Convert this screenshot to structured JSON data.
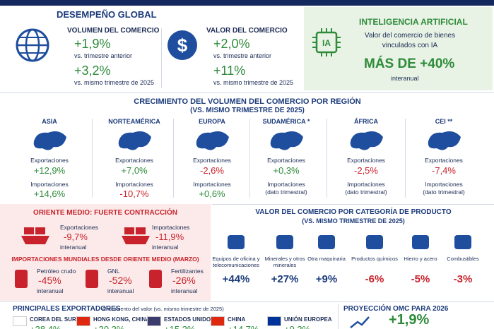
{
  "global": {
    "title": "DESEMPEÑO GLOBAL",
    "volume": {
      "title": "VOLUMEN DEL COMERCIO",
      "q_value": "+1,9%",
      "q_label": "vs. trimestre anterior",
      "y_value": "+3,2%",
      "y_label": "vs. mismo trimestre de 2025"
    },
    "value": {
      "title": "VALOR DEL COMERCIO",
      "q_value": "+2,0%",
      "q_label": "vs. trimestre anterior",
      "y_value": "+11%",
      "y_label": "vs. mismo trimestre de 2025"
    }
  },
  "ai": {
    "title": "INTELIGENCIA ARTIFICIAL",
    "icon": "IA",
    "description": "Valor del comercio de bienes vinculados con IA",
    "highlight": "MÁS DE +40%",
    "note": "interanual"
  },
  "regions": {
    "title": "CRECIMIENTO DEL VOLUMEN DEL COMERCIO POR REGIÓN",
    "subtitle": "(VS. MISMO TRIMESTRE DE 2025)",
    "export_label": "Exportaciones",
    "import_label": "Importaciones",
    "items": [
      {
        "name": "ASIA",
        "exports": "+12,9%",
        "imports": "+14,6%"
      },
      {
        "name": "NORTEAMÉRICA",
        "exports": "+7,0%",
        "imports": "-10,7%"
      },
      {
        "name": "EUROPA",
        "exports": "-2,6%",
        "imports": "+0,6%"
      },
      {
        "name": "SUDAMÉRICA *",
        "exports": "+0,3%",
        "imports_note": "(dato trimestral)"
      },
      {
        "name": "ÁFRICA",
        "exports": "-2,5%",
        "imports_note": "(dato trimestral)"
      },
      {
        "name": "CEI **",
        "exports": "-7,4%",
        "imports_note": "(dato trimestral)"
      }
    ]
  },
  "middle_east": {
    "title": "ORIENTE MEDIO: FUERTE CONTRACCIÓN",
    "flows": [
      {
        "label": "Exportaciones",
        "value": "-9,7%",
        "note": "interanual"
      },
      {
        "label": "Importaciones",
        "value": "-11,9%",
        "note": "interanual"
      }
    ],
    "sub_title": "IMPORTACIONES MUNDIALES DESDE ORIENTE MEDIO (MARZO)",
    "items": [
      {
        "name": "Petróleo crudo",
        "value": "-45%",
        "note": "interanual"
      },
      {
        "name": "GNL",
        "value": "-52%",
        "note": "interanual"
      },
      {
        "name": "Fertilizantes",
        "value": "-26%",
        "note": "interanual"
      }
    ]
  },
  "categories": {
    "title": "VALOR DEL COMERCIO POR CATEGORÍA DE PRODUCTO",
    "subtitle": "(VS. MISMO TRIMESTRE DE 2025)",
    "items": [
      {
        "name": "Equipos de oficina y telecomunicaciones",
        "value": "+44%"
      },
      {
        "name": "Minerales y otros minerales",
        "value": "+27%"
      },
      {
        "name": "Otra maquinaria",
        "value": "+9%"
      },
      {
        "name": "Productos químicos",
        "value": "-6%"
      },
      {
        "name": "Hierro y acero",
        "value": "-5%"
      },
      {
        "name": "Combustibles",
        "value": "-3%"
      }
    ]
  },
  "exporters": {
    "title": "PRINCIPALES EXPORTADORES",
    "subtitle": "Crecimiento del valor (vs. mismo trimestre de 2025)",
    "items": [
      {
        "name": "COREA DEL SUR",
        "value": "+38,4%"
      },
      {
        "name": "HONG KONG, CHINA",
        "value": "+30,3%"
      },
      {
        "name": "ESTADOS UNIDOS",
        "value": "+15,2%"
      },
      {
        "name": "CHINA",
        "value": "+14,7%"
      },
      {
        "name": "UNIÓN EUROPEA",
        "value": "+9,3%"
      }
    ]
  },
  "projection": {
    "title": "PROYECCIÓN OMC PARA 2026",
    "value": "+1,9%"
  }
}
